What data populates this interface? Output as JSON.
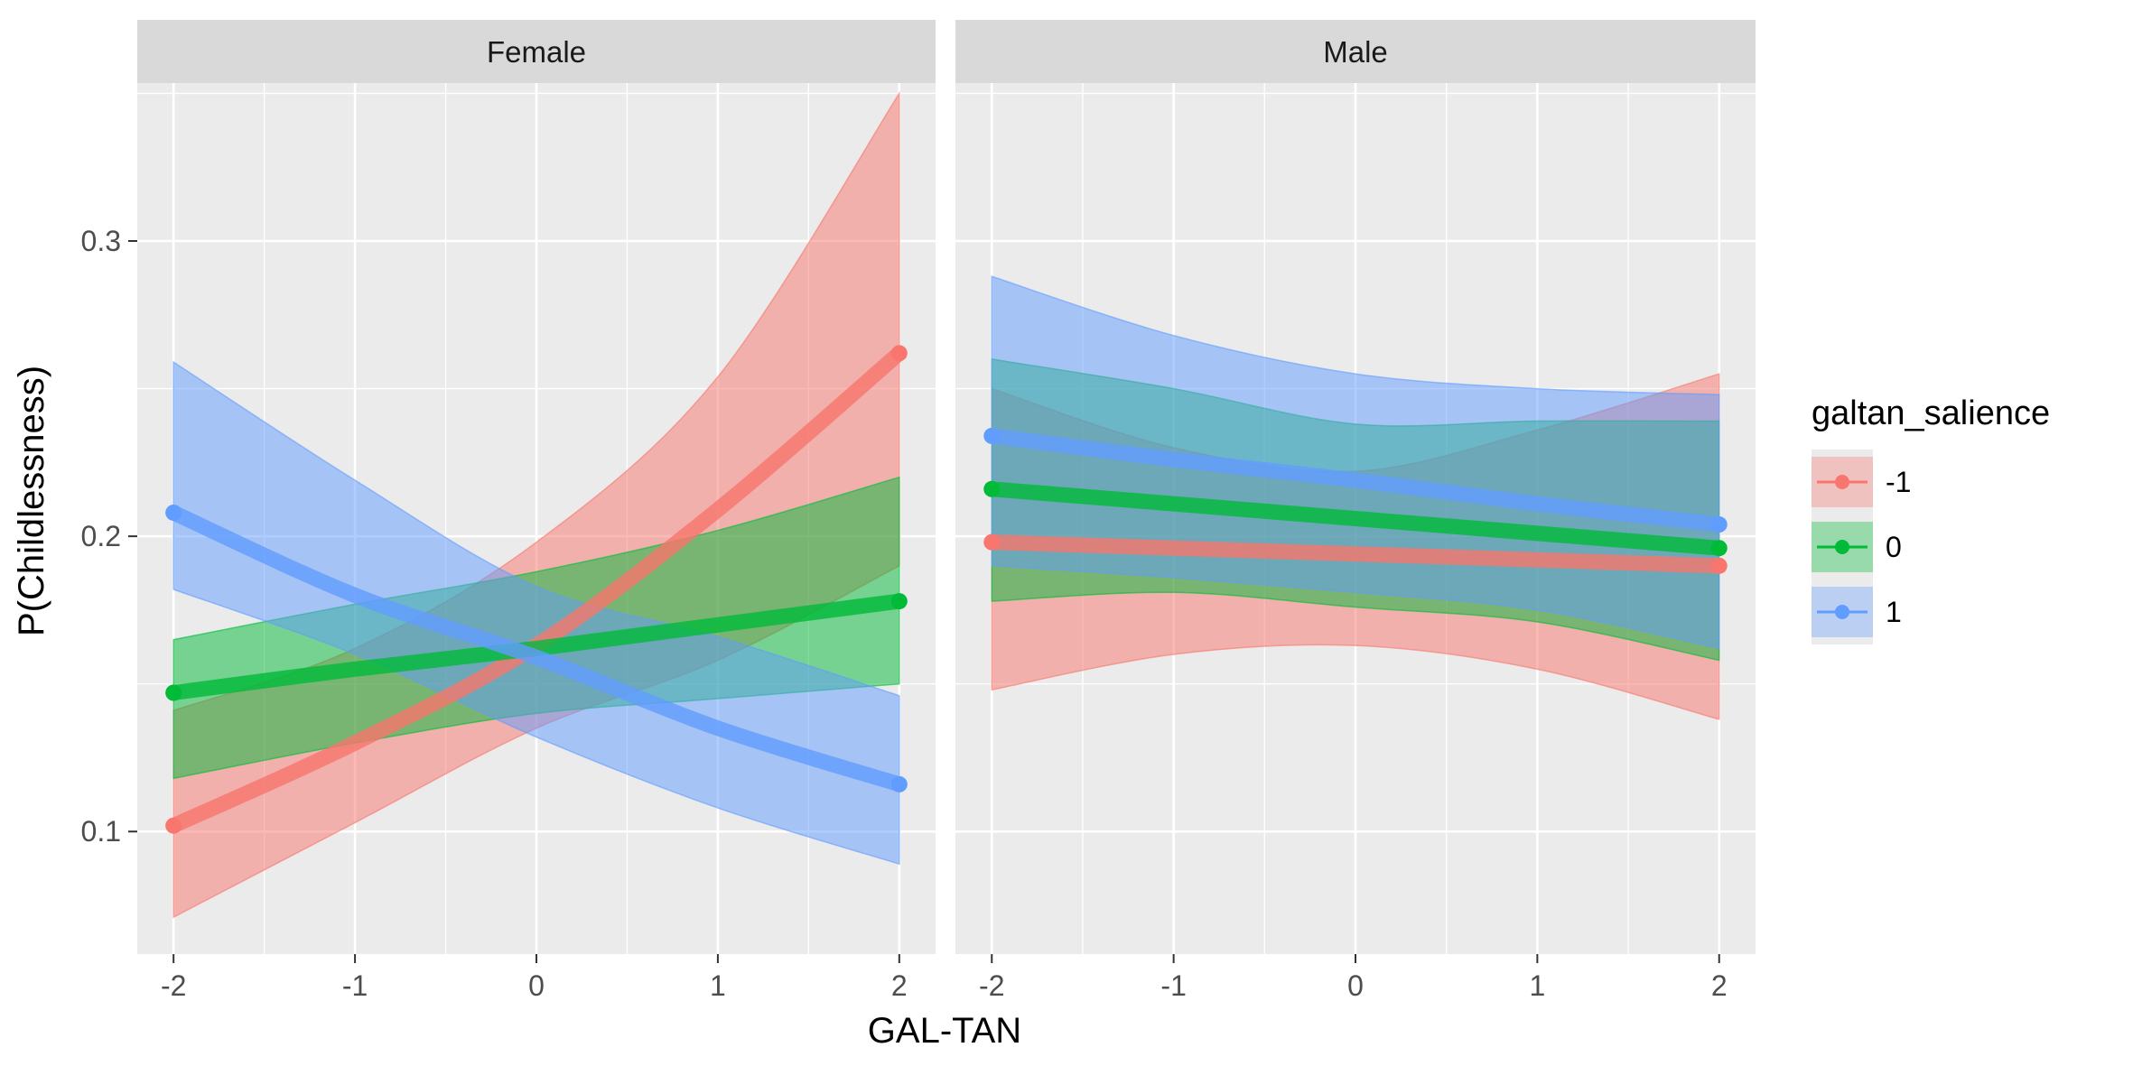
{
  "chart_data": {
    "type": "line",
    "facets": [
      "Female",
      "Male"
    ],
    "xlabel": "GAL-TAN",
    "ylabel": "P(Childlessness)",
    "xlim": [
      -2.2,
      2.2
    ],
    "ylim": [
      0.0585,
      0.3535
    ],
    "x_ticks": [
      -2,
      -1,
      0,
      1,
      2
    ],
    "y_ticks": [
      0.1,
      0.2,
      0.3
    ],
    "x_tick_labels": [
      "-2",
      "-1",
      "0",
      "1",
      "2"
    ],
    "y_tick_labels": [
      "0.1",
      "0.2",
      "0.3"
    ],
    "grid": true,
    "legend": {
      "title": "galtan_salience",
      "position": "right",
      "entries": [
        {
          "label": "-1",
          "color": "#F8766D"
        },
        {
          "label": "0",
          "color": "#00BA38"
        },
        {
          "label": "1",
          "color": "#619CFF"
        }
      ]
    },
    "panels": [
      {
        "facet": "Female",
        "series": [
          {
            "name": "-1",
            "color": "#F8766D",
            "x": [
              -2,
              -1,
              0,
              1,
              2
            ],
            "y": [
              0.102,
              0.13,
              0.163,
              0.209,
              0.262
            ],
            "lower": [
              0.071,
              0.103,
              0.135,
              0.158,
              0.19
            ],
            "upper": [
              0.141,
              0.162,
              0.198,
              0.254,
              0.35
            ]
          },
          {
            "name": "0",
            "color": "#00BA38",
            "x": [
              -2,
              -1,
              0,
              1,
              2
            ],
            "y": [
              0.147,
              0.155,
              0.162,
              0.17,
              0.178
            ],
            "lower": [
              0.118,
              0.13,
              0.14,
              0.145,
              0.15
            ],
            "upper": [
              0.165,
              0.177,
              0.188,
              0.202,
              0.22
            ]
          },
          {
            "name": "1",
            "color": "#619CFF",
            "x": [
              -2,
              -1,
              0,
              1,
              2
            ],
            "y": [
              0.208,
              0.18,
              0.159,
              0.135,
              0.116
            ],
            "lower": [
              0.182,
              0.16,
              0.132,
              0.108,
              0.089
            ],
            "upper": [
              0.259,
              0.219,
              0.183,
              0.166,
              0.146
            ]
          }
        ]
      },
      {
        "facet": "Male",
        "series": [
          {
            "name": "-1",
            "color": "#F8766D",
            "x": [
              -2,
              -1,
              0,
              1,
              2
            ],
            "y": [
              0.198,
              0.196,
              0.194,
              0.192,
              0.19
            ],
            "lower": [
              0.148,
              0.16,
              0.163,
              0.155,
              0.138
            ],
            "upper": [
              0.25,
              0.23,
              0.222,
              0.236,
              0.255
            ]
          },
          {
            "name": "0",
            "color": "#00BA38",
            "x": [
              -2,
              -1,
              0,
              1,
              2
            ],
            "y": [
              0.216,
              0.211,
              0.206,
              0.201,
              0.196
            ],
            "lower": [
              0.178,
              0.181,
              0.176,
              0.171,
              0.158
            ],
            "upper": [
              0.26,
              0.25,
              0.238,
              0.239,
              0.239
            ]
          },
          {
            "name": "1",
            "color": "#619CFF",
            "x": [
              -2,
              -1,
              0,
              1,
              2
            ],
            "y": [
              0.234,
              0.226,
              0.219,
              0.211,
              0.204
            ],
            "lower": [
              0.19,
              0.186,
              0.181,
              0.175,
              0.162
            ],
            "upper": [
              0.288,
              0.268,
              0.255,
              0.25,
              0.248
            ]
          }
        ]
      }
    ]
  }
}
